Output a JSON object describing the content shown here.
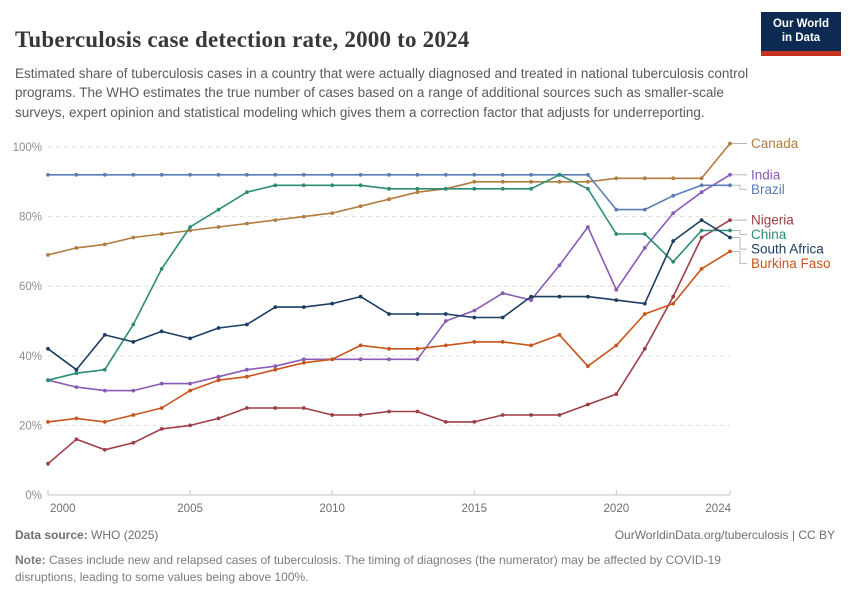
{
  "header": {
    "title": "Tuberculosis case detection rate, 2000 to 2024",
    "subtitle": "Estimated share of tuberculosis cases in a country that were actually diagnosed and treated in national tuberculosis control programs. The WHO estimates the true number of cases based on a range of additional sources such as smaller-scale surveys, expert opinion and statistical modeling which gives them a correction factor that adjusts for underreporting."
  },
  "logo": {
    "line1": "Our World",
    "line2": "in Data",
    "bg_color": "#0c2a52",
    "bar_color": "#c5341c"
  },
  "chart_data": {
    "type": "line",
    "title": "Tuberculosis case detection rate, 2000 to 2024",
    "xlabel": "",
    "ylabel": "",
    "x_range": [
      2000,
      2024
    ],
    "x_ticks": [
      2000,
      2005,
      2010,
      2015,
      2020,
      2024
    ],
    "y_range": [
      0,
      100
    ],
    "y_ticks": [
      0,
      20,
      40,
      60,
      80,
      100
    ],
    "y_tick_suffix": "%",
    "grid": "dashed",
    "legend_position": "right",
    "years": [
      2000,
      2001,
      2002,
      2003,
      2004,
      2005,
      2006,
      2007,
      2008,
      2009,
      2010,
      2011,
      2012,
      2013,
      2014,
      2015,
      2016,
      2017,
      2018,
      2019,
      2020,
      2021,
      2022,
      2023,
      2024
    ],
    "series": [
      {
        "name": "Canada",
        "color": "#B07C3F",
        "values": [
          69,
          71,
          72,
          74,
          75,
          76,
          77,
          78,
          79,
          80,
          81,
          83,
          85,
          87,
          88,
          90,
          90,
          90,
          90,
          90,
          91,
          91,
          91,
          91,
          101
        ]
      },
      {
        "name": "India",
        "color": "#8A5BB5",
        "values": [
          33,
          31,
          30,
          30,
          32,
          32,
          34,
          36,
          37,
          39,
          39,
          39,
          39,
          39,
          50,
          53,
          58,
          56,
          66,
          77,
          59,
          71,
          81,
          87,
          92
        ]
      },
      {
        "name": "Brazil",
        "color": "#5A7EB5",
        "values": [
          92,
          92,
          92,
          92,
          92,
          92,
          92,
          92,
          92,
          92,
          92,
          92,
          92,
          92,
          92,
          92,
          92,
          92,
          92,
          92,
          82,
          82,
          86,
          89,
          89
        ]
      },
      {
        "name": "Nigeria",
        "color": "#9E3E46",
        "values": [
          9,
          16,
          13,
          15,
          19,
          20,
          22,
          25,
          25,
          25,
          23,
          23,
          24,
          24,
          21,
          21,
          23,
          23,
          23,
          26,
          29,
          42,
          57,
          74,
          79
        ]
      },
      {
        "name": "China",
        "color": "#2D8C73",
        "values": [
          33,
          35,
          36,
          49,
          65,
          77,
          82,
          87,
          89,
          89,
          89,
          89,
          88,
          88,
          88,
          88,
          88,
          88,
          92,
          88,
          75,
          75,
          67,
          76,
          76
        ]
      },
      {
        "name": "South Africa",
        "color": "#1D3D63",
        "values": [
          42,
          36,
          46,
          44,
          47,
          45,
          48,
          49,
          54,
          54,
          55,
          57,
          52,
          52,
          52,
          51,
          51,
          57,
          57,
          57,
          56,
          55,
          73,
          79,
          74
        ]
      },
      {
        "name": "Burkina Faso",
        "color": "#C8551C",
        "values": [
          21,
          22,
          21,
          23,
          25,
          30,
          33,
          34,
          36,
          38,
          39,
          43,
          42,
          42,
          43,
          44,
          44,
          43,
          46,
          37,
          43,
          52,
          55,
          65,
          70
        ]
      }
    ]
  },
  "footer": {
    "datasource_label": "Data source:",
    "datasource_value": "WHO (2025)",
    "attribution": "OurWorldinData.org/tuberculosis | CC BY",
    "note_label": "Note:",
    "note_text": "Cases include new and relapsed cases of tuberculosis. The timing of diagnoses (the numerator) may be affected by COVID-19 disruptions, leading to some values being above 100%."
  }
}
